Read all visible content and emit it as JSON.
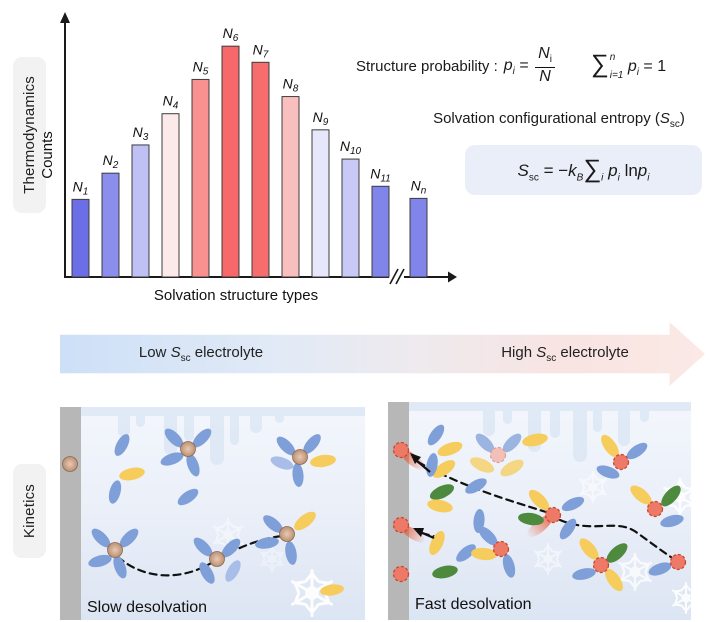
{
  "colors": {
    "axis": "#1a1a1a",
    "bar_stroke": "#3c3c3c",
    "text_dark": "#1a1a1a",
    "formula_box_bg": "#e9eef8",
    "side_label_bg": "#f2f2f2",
    "arrow_blue": "#cde0f7",
    "arrow_pink": "#f9e4e2",
    "electrode": "#b7b7b7",
    "panel_bg": "#e9eff9",
    "solvent_blue": "#7f9fd8",
    "solvent_blue_light": "#a9bde9",
    "solvent_yellow": "#f6cd5c",
    "solvent_green": "#4e8a3d",
    "ion_tan": "#cda88c",
    "ion_red": "#ec7a66",
    "ion_red_stroke": "#c94733",
    "trail_red": "#e64f28",
    "snowflake": "#ffffff"
  },
  "side_labels": {
    "thermodynamics": "Thermodynamics",
    "kinetics": "Kinetics"
  },
  "chart_data": {
    "type": "bar",
    "title": "",
    "xlabel": "Solvation structure types",
    "ylabel": "Counts",
    "category_base": "N",
    "category_subscripts": [
      "1",
      "2",
      "3",
      "4",
      "5",
      "6",
      "7",
      "8",
      "9",
      "10",
      "11",
      "n"
    ],
    "categories": [
      "N1",
      "N2",
      "N3",
      "N4",
      "N5",
      "N6",
      "N7",
      "N8",
      "N9",
      "N10",
      "N11",
      "Nn"
    ],
    "values": [
      77,
      103,
      131,
      162,
      196,
      229,
      213,
      179,
      146,
      117,
      90,
      78
    ],
    "ylim": [
      0,
      250
    ],
    "value_note": "relative counts estimated from bar heights; y-axis has no numeric ticks",
    "bar_colors": [
      "#6b6ee4",
      "#8b8eec",
      "#bfc1f4",
      "#fce9e9",
      "#f89190",
      "#f6686a",
      "#f66d6e",
      "#f9bfbf",
      "#e6e7fa",
      "#c8caf5",
      "#8184e8",
      "#8184e8"
    ],
    "axis_break_before_last": true,
    "grid": false,
    "legend": null
  },
  "formulas": {
    "structure_probability": {
      "label": "Structure probability :",
      "p": "p",
      "p_sub": "i",
      "equals": "=",
      "numerator": "N",
      "numerator_sub": "i",
      "denominator": "N",
      "sum": "∑",
      "sum_sup": "n",
      "sum_sub": "i=1",
      "sum_p": "p",
      "sum_p_sub": "i",
      "sum_equals": "= 1"
    },
    "entropy": {
      "heading_prefix": "Solvation configurational entropy (",
      "heading_s": "S",
      "heading_s_sub": "sc",
      "heading_suffix": ")",
      "s": "S",
      "s_sub": "sc",
      "equals": "= −",
      "k": "k",
      "k_sub": "B",
      "sum": "∑",
      "sum_sub": "i",
      "p1": "p",
      "p1_sub": "i",
      "ln": "ln",
      "p2": "p",
      "p2_sub": "i"
    }
  },
  "gradient_arrow": {
    "low_prefix": "Low ",
    "low_s": "S",
    "low_s_sub": "sc",
    "low_suffix": " electrolyte",
    "high_prefix": "High ",
    "high_s": "S",
    "high_s_sub": "sc",
    "high_suffix": " electrolyte"
  },
  "panels": {
    "left": {
      "caption": "Slow desolvation"
    },
    "right": {
      "caption": "Fast desolvation"
    }
  }
}
